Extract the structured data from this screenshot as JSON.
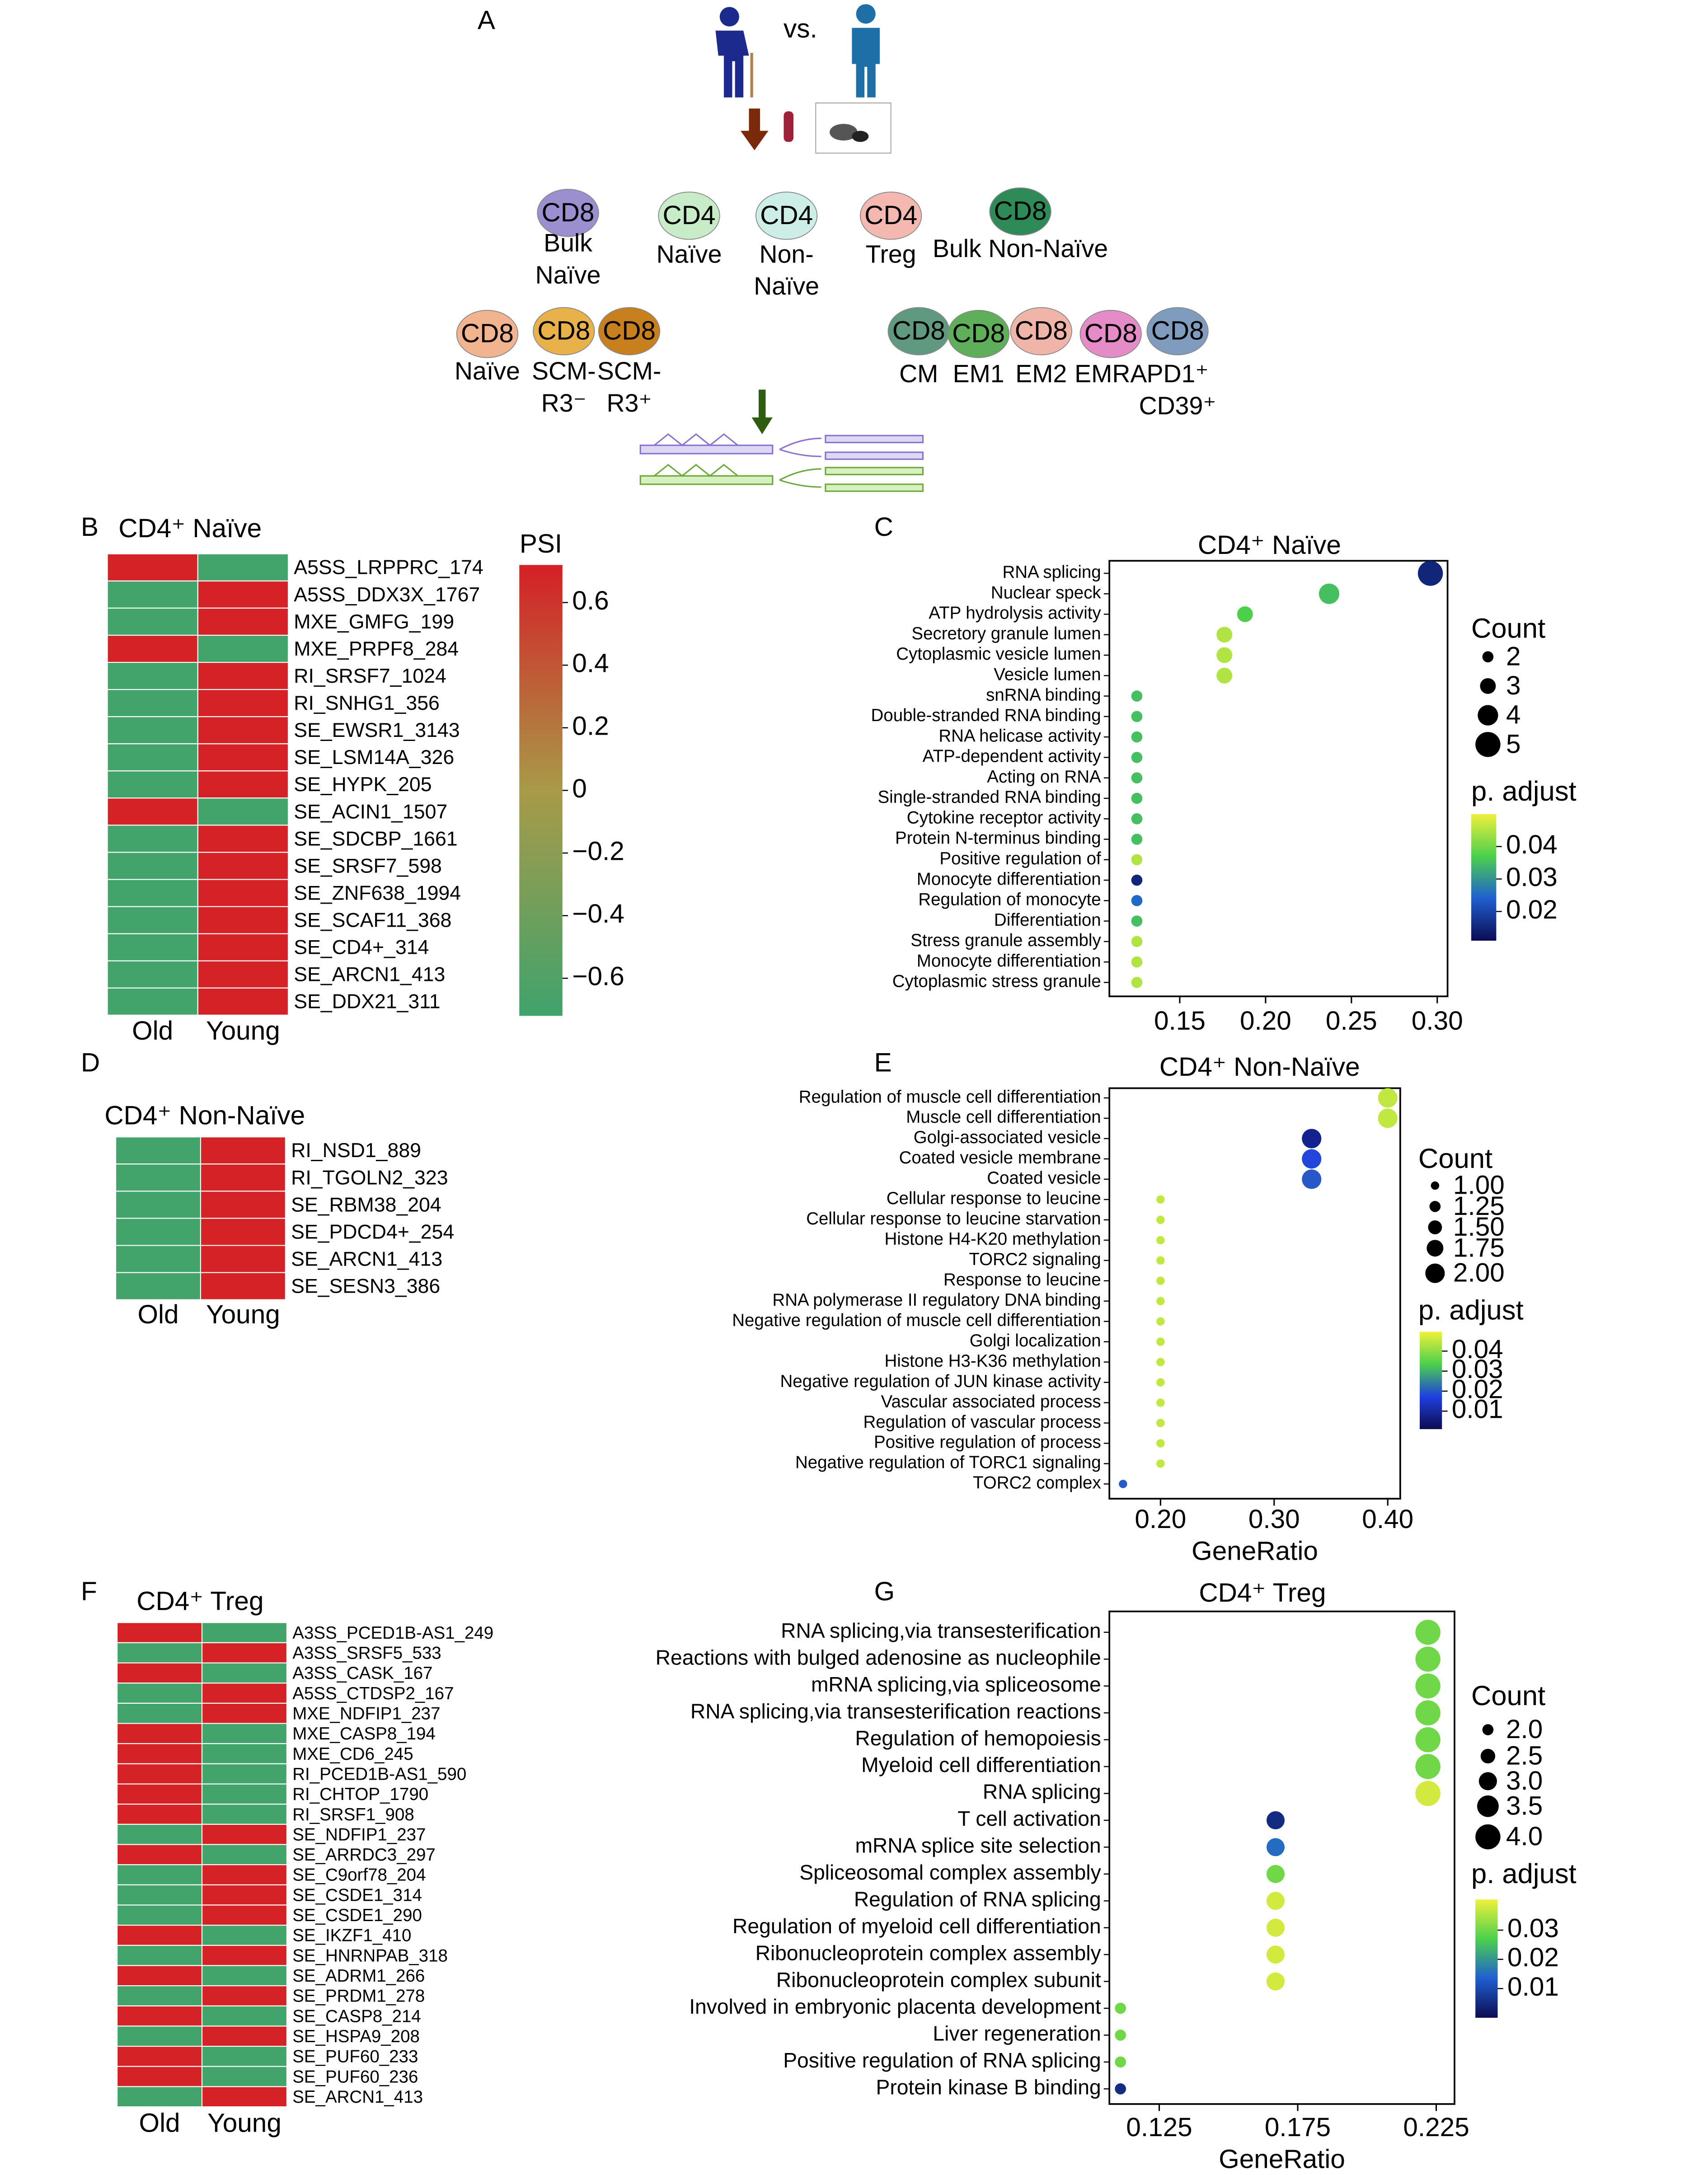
{
  "panel_labels": [
    "A",
    "B",
    "C",
    "D",
    "E",
    "F",
    "G"
  ],
  "diagram": {
    "vs": "vs.",
    "cells": [
      {
        "marker": "CD8",
        "color": "#9b8fd0",
        "lines": [
          "Bulk",
          "Naïve"
        ]
      },
      {
        "marker": "CD4",
        "color": "#c8ecc8",
        "lines": [
          "Naïve"
        ]
      },
      {
        "marker": "CD4",
        "color": "#cdeee6",
        "lines": [
          "Non-",
          "Naïve"
        ]
      },
      {
        "marker": "CD4",
        "color": "#f4b8b0",
        "lines": [
          "Treg"
        ]
      },
      {
        "marker": "CD8",
        "color": "#2e8b57",
        "lines": [
          "Bulk Non-Naïve"
        ]
      },
      {
        "marker": "CD8",
        "color": "#f2b38f",
        "lines": [
          "Naïve"
        ]
      },
      {
        "marker": "CD8",
        "color": "#e8b14a",
        "lines": [
          "SCM-",
          "R3⁻"
        ]
      },
      {
        "marker": "CD8",
        "color": "#c87f1e",
        "lines": [
          "SCM-",
          "R3⁺"
        ]
      },
      {
        "marker": "CD8",
        "color": "#5f9a80",
        "lines": [
          "CM"
        ]
      },
      {
        "marker": "CD8",
        "color": "#5fae5a",
        "lines": [
          "EM1"
        ]
      },
      {
        "marker": "CD8",
        "color": "#f0b5a8",
        "lines": [
          "EM2"
        ]
      },
      {
        "marker": "CD8",
        "color": "#e58cc8",
        "lines": [
          "EMRA"
        ]
      },
      {
        "marker": "CD8",
        "color": "#7f9cbf",
        "lines": [
          "PD1⁺",
          "CD39⁺"
        ]
      }
    ]
  },
  "chart_data": [
    {
      "type": "heatmap",
      "title": "CD4⁺ Naïve",
      "columns": [
        "Old",
        "Young"
      ],
      "rows": [
        "A5SS_LRPPRC_174",
        "A5SS_DDX3X_1767",
        "MXE_GMFG_199",
        "MXE_PRPF8_284",
        "RI_SRSF7_1024",
        "RI_SNHG1_356",
        "SE_EWSR1_3143",
        "SE_LSM14A_326",
        "SE_HYPK_205",
        "SE_ACIN1_1507",
        "SE_SDCBP_1661",
        "SE_SRSF7_598",
        "SE_ZNF638_1994",
        "SE_SCAF11_368",
        "SE_CD4+_314",
        "SE_ARCN1_413",
        "SE_DDX21_311"
      ],
      "row_label_colors": [
        "#000000",
        "#000000",
        "#000000",
        "#000000",
        "#000000",
        "#000000",
        "#000000",
        "#000000",
        "#000000",
        "#000000",
        "#000000",
        "#000000",
        "#000000",
        "#000000",
        "#e8161b",
        "#000000",
        "#4ec3d6"
      ],
      "values": [
        [
          0.7,
          -0.7
        ],
        [
          -0.7,
          0.7
        ],
        [
          -0.7,
          0.7
        ],
        [
          0.7,
          -0.7
        ],
        [
          -0.7,
          0.7
        ],
        [
          -0.7,
          0.7
        ],
        [
          -0.7,
          0.7
        ],
        [
          -0.7,
          0.7
        ],
        [
          -0.7,
          0.7
        ],
        [
          0.7,
          -0.7
        ],
        [
          -0.7,
          0.7
        ],
        [
          -0.7,
          0.7
        ],
        [
          -0.7,
          0.7
        ],
        [
          -0.7,
          0.7
        ],
        [
          -0.7,
          0.7
        ],
        [
          -0.7,
          0.7
        ],
        [
          -0.7,
          0.7
        ]
      ],
      "colormap": [
        "#3fa36c",
        "#a89a48",
        "#d51f26"
      ],
      "clim": [
        -0.72,
        0.72
      ],
      "colorbar": {
        "title": "PSI",
        "ticks": [
          0.6,
          0.4,
          0.2,
          0,
          {
            "value": -0.2,
            "label": "−0.2"
          },
          {
            "value": -0.4,
            "label": "−0.4"
          },
          {
            "value": -0.6,
            "label": "−0.6"
          }
        ]
      }
    },
    {
      "type": "dot",
      "title": "CD4⁺ Naïve",
      "categories": [
        "RNA splicing",
        "Nuclear speck",
        "ATP hydrolysis activity",
        "Secretory granule lumen",
        "Cytoplasmic vesicle lumen",
        "Vesicle lumen",
        "snRNA binding",
        "Double-stranded RNA binding",
        "RNA helicase activity",
        "ATP-dependent activity",
        "Acting on RNA",
        "Single-stranded RNA binding",
        "Cytokine receptor activity",
        "Protein N-terminus binding",
        "Positive regulation of",
        "Monocyte differentiation",
        "Regulation of monocyte",
        "Differentiation",
        "Stress granule assembly",
        "Monocyte differentiation",
        "Cytoplasmic stress granule"
      ],
      "x": [
        0.296,
        0.237,
        0.188,
        0.176,
        0.176,
        0.176,
        0.125,
        0.125,
        0.125,
        0.125,
        0.125,
        0.125,
        0.125,
        0.125,
        0.125,
        0.125,
        0.125,
        0.125,
        0.125,
        0.125,
        0.125
      ],
      "sizes": [
        5,
        4,
        3,
        3,
        3,
        3,
        2,
        2,
        2,
        2,
        2,
        2,
        2,
        2,
        2,
        2,
        2,
        2,
        2,
        2,
        2
      ],
      "padj": [
        0.015,
        0.035,
        0.037,
        0.045,
        0.045,
        0.045,
        0.035,
        0.035,
        0.035,
        0.035,
        0.035,
        0.035,
        0.035,
        0.035,
        0.045,
        0.015,
        0.025,
        0.035,
        0.045,
        0.045,
        0.045
      ],
      "xlim": [
        0.109,
        0.306
      ],
      "xticks": [
        0.15,
        {
          "value": 0.2,
          "label": "0.20"
        },
        0.25,
        {
          "value": 0.3,
          "label": "0.30"
        }
      ],
      "size_legend": {
        "title": "Count",
        "values": [
          2,
          3,
          4,
          5
        ]
      },
      "color_legend": {
        "title": "p. adjust",
        "clim": [
          0.011,
          0.05
        ],
        "ticks": [
          0.04,
          0.03,
          0.02
        ]
      },
      "colormap": [
        "#0c0c52",
        "#1f5fd0",
        "#4cd04c",
        "#f0f03c"
      ]
    },
    {
      "type": "heatmap",
      "title": "CD4⁺ Non-Naïve",
      "columns": [
        "Old",
        "Young"
      ],
      "rows": [
        "RI_NSD1_889",
        "RI_TGOLN2_323",
        "SE_RBM38_204",
        "SE_PDCD4+_254",
        "SE_ARCN1_413",
        "SE_SESN3_386"
      ],
      "row_label_colors": [
        "#000000",
        "#000000",
        "#000000",
        "#000000",
        "#4ec3d6",
        "#000000"
      ],
      "values": [
        [
          -0.7,
          0.7
        ],
        [
          -0.7,
          0.7
        ],
        [
          -0.7,
          0.7
        ],
        [
          -0.7,
          0.7
        ],
        [
          -0.7,
          0.7
        ],
        [
          -0.7,
          0.7
        ]
      ],
      "colormap": [
        "#3fa36c",
        "#a89a48",
        "#d51f26"
      ],
      "clim": [
        -0.72,
        0.72
      ]
    },
    {
      "type": "dot",
      "title": "CD4⁺ Non-Naïve",
      "categories": [
        "Regulation of muscle cell differentiation",
        "Muscle cell differentiation",
        "Golgi-associated vesicle",
        "Coated vesicle membrane",
        "Coated vesicle",
        "Cellular response to leucine",
        "Cellular response to leucine starvation",
        "Histone H4-K20 methylation",
        "TORC2 signaling",
        "Response to leucine",
        "RNA polymerase II regulatory DNA binding",
        "Negative regulation of muscle cell differentiation",
        "Golgi localization",
        "Histone H3-K36 methylation",
        "Negative regulation of JUN kinase activity",
        "Vascular associated process",
        "Regulation of vascular process",
        "Positive regulation of process",
        "Negative regulation of TORC1 signaling",
        "TORC2 complex"
      ],
      "x": [
        0.4,
        0.4,
        0.333,
        0.333,
        0.333,
        0.2,
        0.2,
        0.2,
        0.2,
        0.2,
        0.2,
        0.2,
        0.2,
        0.2,
        0.2,
        0.2,
        0.2,
        0.2,
        0.2,
        0.167
      ],
      "sizes": [
        2,
        2,
        2,
        2,
        2,
        1,
        1,
        1,
        1,
        1,
        1,
        1,
        1,
        1,
        1,
        1,
        1,
        1,
        1,
        1
      ],
      "padj": [
        0.045,
        0.045,
        0.008,
        0.018,
        0.02,
        0.045,
        0.045,
        0.045,
        0.045,
        0.045,
        0.045,
        0.045,
        0.045,
        0.045,
        0.045,
        0.045,
        0.045,
        0.045,
        0.045,
        0.02
      ],
      "xlim": [
        0.155,
        0.411
      ],
      "xticks": [
        {
          "value": 0.2,
          "label": "0.20"
        },
        {
          "value": 0.3,
          "label": "0.30"
        },
        {
          "value": 0.4,
          "label": "0.40"
        }
      ],
      "xlabel": "GeneRatio",
      "size_legend": {
        "title": "Count",
        "values": [
          {
            "value": 1,
            "label": "1.00"
          },
          1.25,
          {
            "value": 1.5,
            "label": "1.50"
          },
          1.75,
          {
            "value": 2,
            "label": "2.00"
          }
        ]
      },
      "color_legend": {
        "title": "p. adjust",
        "clim": [
          0.001,
          0.0497
        ],
        "ticks": [
          0.04,
          0.03,
          0.02,
          0.01
        ]
      },
      "colormap": [
        "#0c0c52",
        "#1f3fe0",
        "#4cd04c",
        "#f0f03c"
      ]
    },
    {
      "type": "heatmap",
      "title": "CD4⁺ Treg",
      "columns": [
        "Old",
        "Young"
      ],
      "rows": [
        "A3SS_PCED1B-AS1_249",
        "A3SS_SRSF5_533",
        "A3SS_CASK_167",
        "A5SS_CTDSP2_167",
        "MXE_NDFIP1_237",
        "MXE_CASP8_194",
        "MXE_CD6_245",
        "RI_PCED1B-AS1_590",
        "RI_CHTOP_1790",
        "RI_SRSF1_908",
        "SE_NDFIP1_237",
        "SE_ARRDC3_297",
        "SE_C9orf78_204",
        "SE_CSDE1_314",
        "SE_CSDE1_290",
        "SE_IKZF1_410",
        "SE_HNRNPAB_318",
        "SE_ADRM1_266",
        "SE_PRDM1_278",
        "SE_CASP8_214",
        "SE_HSPA9_208",
        "SE_PUF60_233",
        "SE_PUF60_236",
        "SE_ARCN1_413"
      ],
      "row_label_colors": [
        "#000000",
        "#000000",
        "#000000",
        "#000000",
        "#000000",
        "#000000",
        "#000000",
        "#000000",
        "#000000",
        "#000000",
        "#000000",
        "#000000",
        "#000000",
        "#000000",
        "#000000",
        "#000000",
        "#000000",
        "#000000",
        "#000000",
        "#000000",
        "#000000",
        "#000000",
        "#000000",
        "#4ec3d6"
      ],
      "values": [
        [
          0.7,
          -0.7
        ],
        [
          -0.7,
          0.7
        ],
        [
          0.7,
          -0.7
        ],
        [
          -0.7,
          0.7
        ],
        [
          -0.7,
          0.7
        ],
        [
          0.7,
          -0.7
        ],
        [
          0.7,
          -0.7
        ],
        [
          0.7,
          -0.7
        ],
        [
          0.7,
          -0.7
        ],
        [
          0.7,
          -0.7
        ],
        [
          -0.7,
          0.7
        ],
        [
          0.7,
          -0.7
        ],
        [
          -0.7,
          0.7
        ],
        [
          -0.7,
          0.7
        ],
        [
          -0.7,
          0.7
        ],
        [
          0.7,
          -0.7
        ],
        [
          -0.7,
          0.7
        ],
        [
          0.7,
          -0.7
        ],
        [
          -0.7,
          0.7
        ],
        [
          0.7,
          -0.7
        ],
        [
          -0.7,
          0.7
        ],
        [
          0.7,
          -0.7
        ],
        [
          0.7,
          -0.7
        ],
        [
          -0.7,
          0.7
        ]
      ],
      "colormap": [
        "#3fa36c",
        "#a89a48",
        "#d51f26"
      ],
      "clim": [
        -0.72,
        0.72
      ]
    },
    {
      "type": "dot",
      "title": "CD4⁺ Treg",
      "categories": [
        "RNA splicing,via transesterification",
        "Reactions with bulged adenosine as nucleophile",
        "mRNA splicing,via spliceosome",
        "RNA splicing,via transesterification reactions",
        "Regulation of hemopoiesis",
        "Myeloid cell differentiation",
        "RNA splicing",
        "T cell activation",
        "mRNA splice site selection",
        "Spliceosomal complex assembly",
        "Regulation of RNA splicing",
        "Regulation of myeloid cell differentiation",
        "Ribonucleoprotein complex assembly",
        "Ribonucleoprotein complex subunit",
        "Involved in embryonic placenta development",
        "Liver regeneration",
        "Positive regulation of RNA splicing",
        "Protein kinase B binding"
      ],
      "x": [
        0.222,
        0.222,
        0.222,
        0.222,
        0.222,
        0.222,
        0.222,
        0.167,
        0.167,
        0.167,
        0.167,
        0.167,
        0.167,
        0.167,
        0.111,
        0.111,
        0.111,
        0.111
      ],
      "sizes": [
        4,
        4,
        4,
        4,
        4,
        4,
        4,
        3,
        3,
        3,
        3,
        3,
        3,
        3,
        2,
        2,
        2,
        2
      ],
      "padj": [
        0.03,
        0.03,
        0.03,
        0.03,
        0.03,
        0.03,
        0.038,
        0.005,
        0.015,
        0.03,
        0.038,
        0.038,
        0.038,
        0.038,
        0.03,
        0.03,
        0.03,
        0.005
      ],
      "xlim": [
        0.107,
        0.2316
      ],
      "xticks": [
        0.125,
        0.175,
        0.225
      ],
      "xlabel": "GeneRatio",
      "size_legend": {
        "title": "Count",
        "values": [
          {
            "value": 2,
            "label": "2.0"
          },
          2.5,
          {
            "value": 3,
            "label": "3.0"
          },
          3.5,
          {
            "value": 4,
            "label": "4.0"
          }
        ]
      },
      "color_legend": {
        "title": "p. adjust",
        "clim": [
          0,
          0.0405
        ],
        "ticks": [
          0.03,
          0.02,
          0.01
        ]
      },
      "colormap": [
        "#0c0c52",
        "#1f5fd0",
        "#4cd04c",
        "#f0f03c"
      ]
    }
  ]
}
